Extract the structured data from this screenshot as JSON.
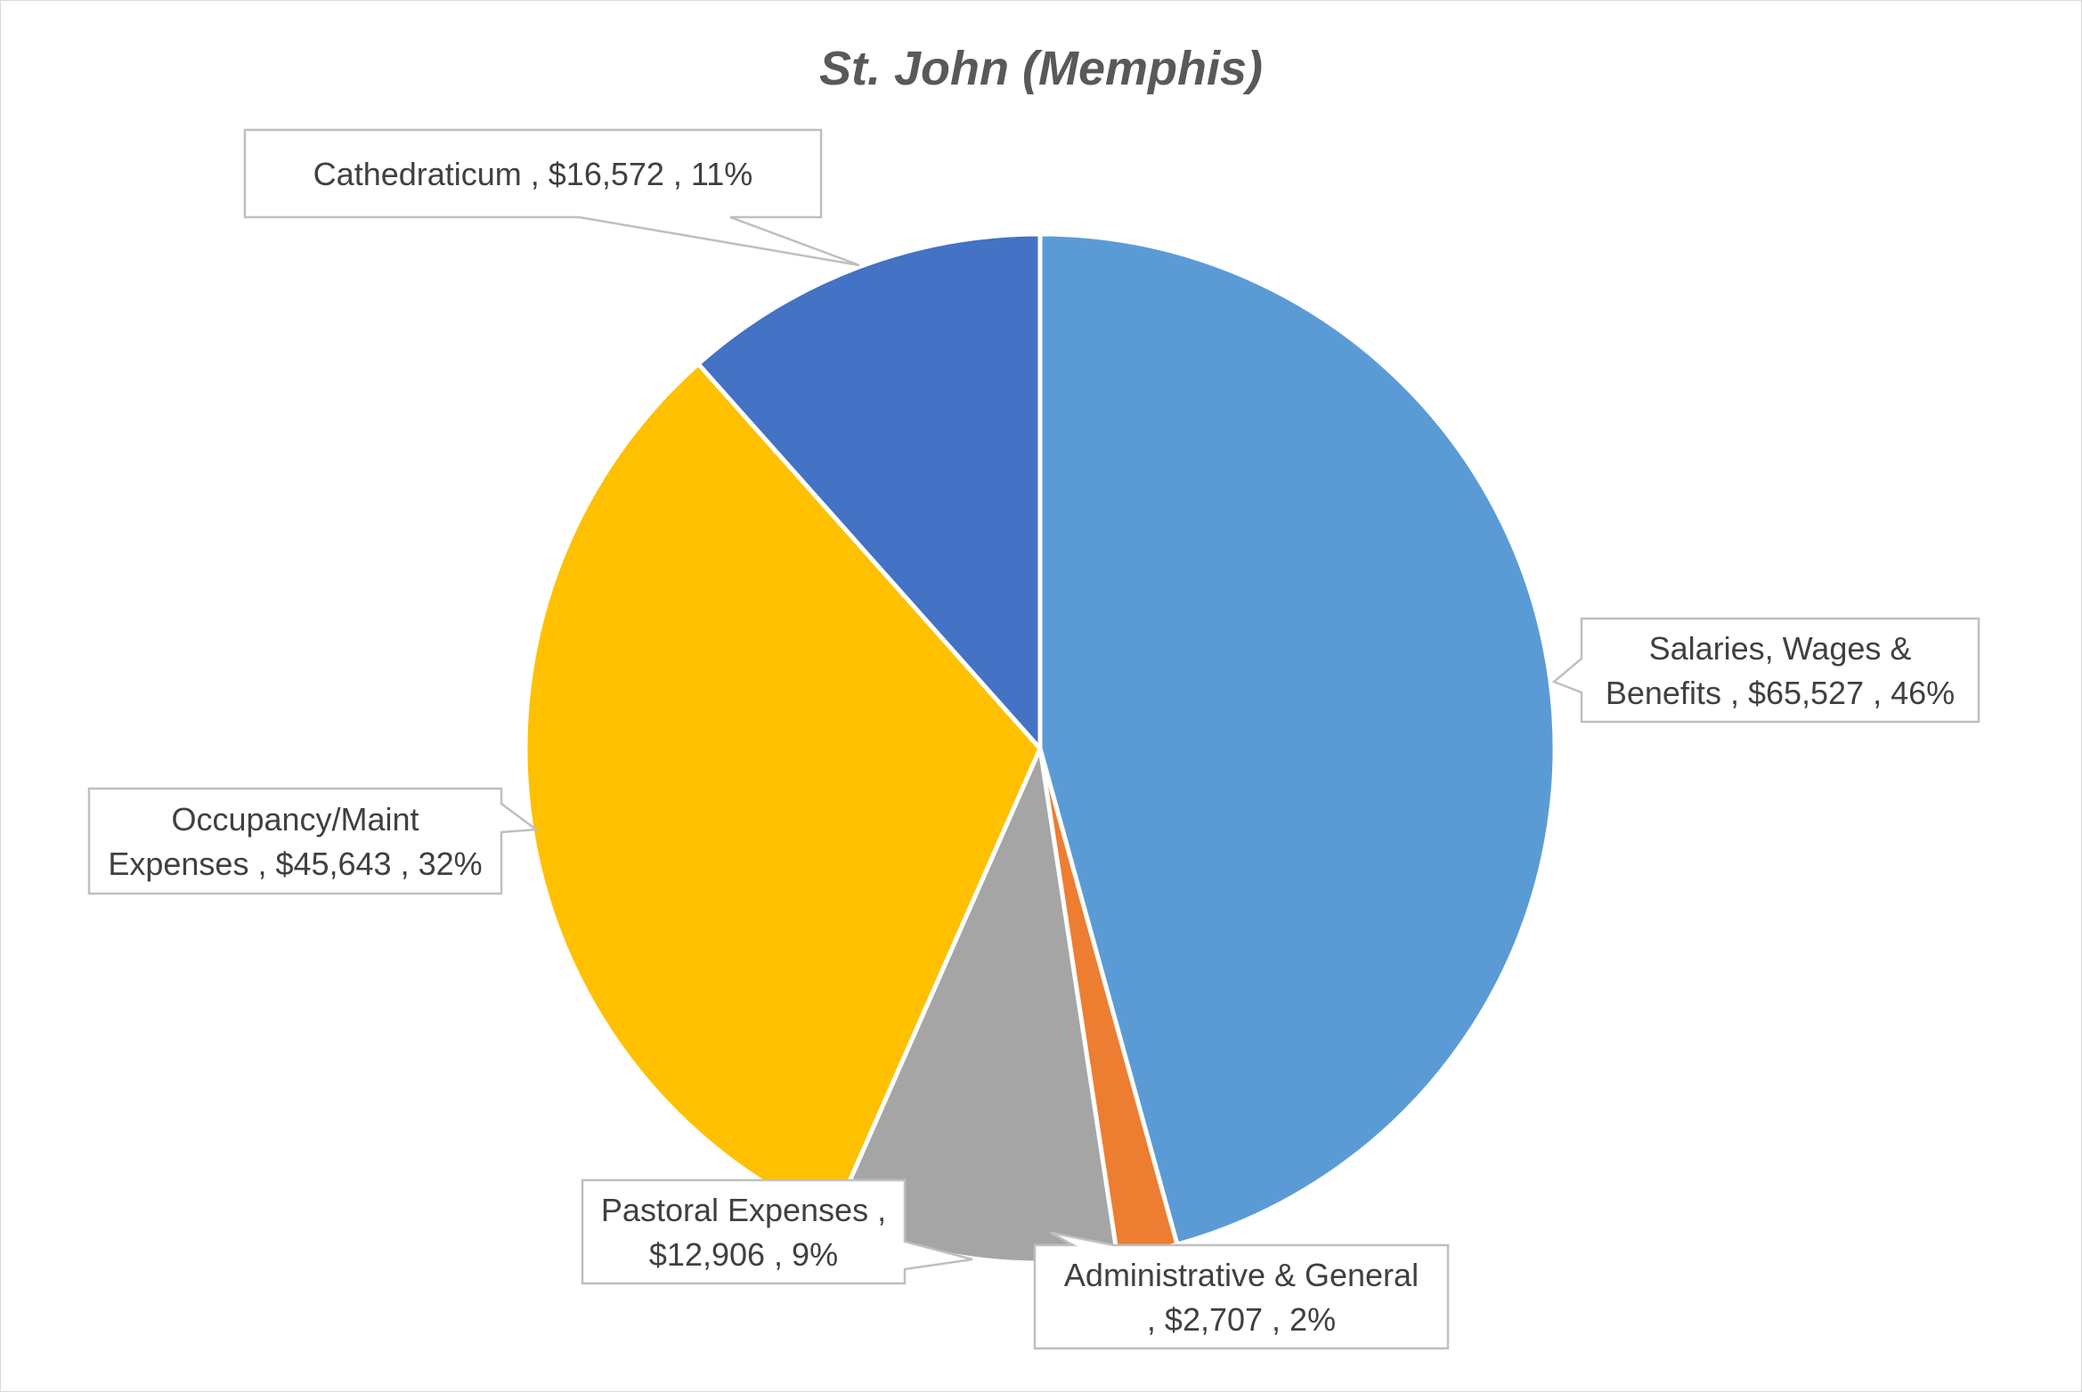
{
  "chart_data": {
    "type": "pie",
    "title": "St. John (Memphis)",
    "slices": [
      {
        "name": "Salaries, Wages & Benefits",
        "value": 65527,
        "value_label": "$65,527",
        "percent_label": "46%",
        "color": "#5B9BD5",
        "label_lines": [
          "Salaries, Wages &",
          "Benefits ,  $65,527 , 46%"
        ]
      },
      {
        "name": "Administrative & General",
        "value": 2707,
        "value_label": "$2,707",
        "percent_label": "2%",
        "color": "#ED7D31",
        "label_lines": [
          "Administrative & General",
          ",  $2,707 , 2%"
        ]
      },
      {
        "name": "Pastoral Expenses",
        "value": 12906,
        "value_label": "$12,906",
        "percent_label": "9%",
        "color": "#A5A5A5",
        "label_lines": [
          "Pastoral Expenses ,",
          "$12,906 , 9%"
        ]
      },
      {
        "name": "Occupancy/Maint Expenses",
        "value": 45643,
        "value_label": "$45,643",
        "percent_label": "32%",
        "color": "#FFC000",
        "label_lines": [
          "Occupancy/Maint",
          "Expenses ,  $45,643 , 32%"
        ]
      },
      {
        "name": "Cathedraticum",
        "value": 16572,
        "value_label": "$16,572",
        "percent_label": "11%",
        "color": "#4472C4",
        "label_lines": [
          "Cathedraticum ,  $16,572 , 11%"
        ]
      }
    ]
  }
}
